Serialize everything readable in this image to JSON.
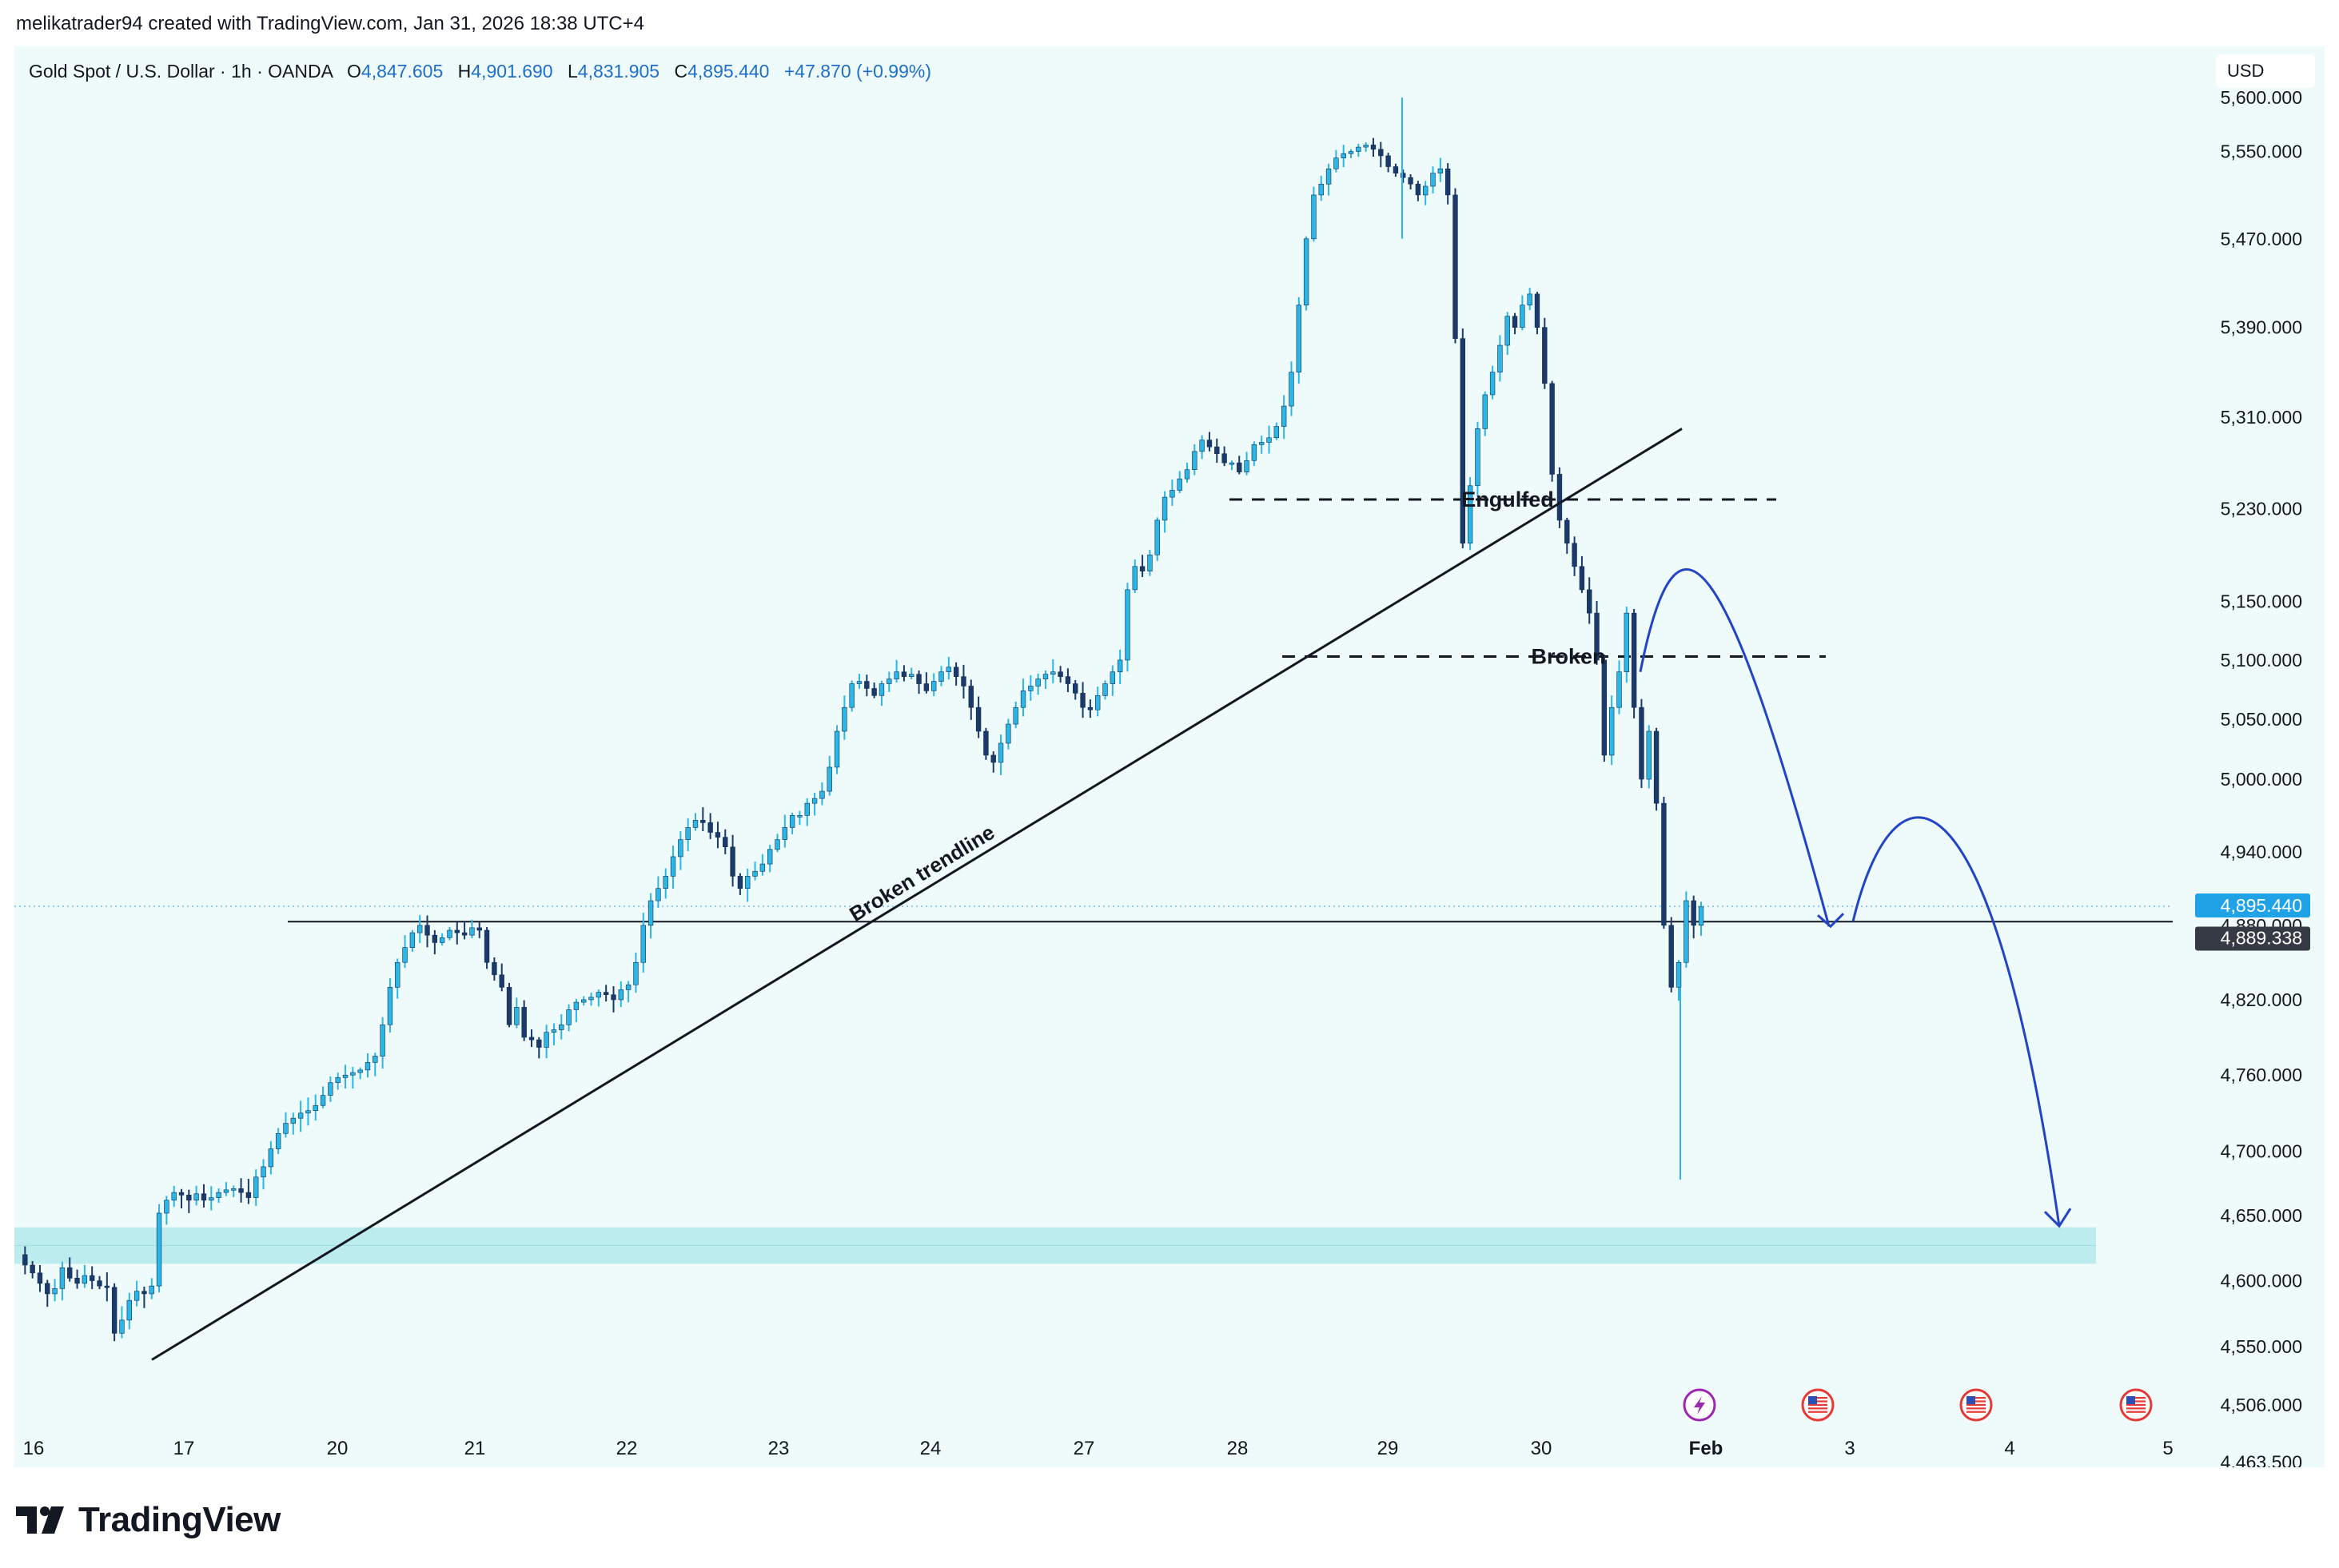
{
  "header": {
    "attribution": "melikatrader94 created with TradingView.com, Jan 31, 2026 18:38 UTC+4"
  },
  "legend": {
    "symbol": "Gold Spot / U.S. Dollar · 1h · OANDA",
    "open_label": "O",
    "open": "4,847.605",
    "high_label": "H",
    "high": "4,901.690",
    "low_label": "L",
    "low": "4,831.905",
    "close_label": "C",
    "close": "4,895.440",
    "change": "+47.870 (+0.99%)"
  },
  "currency": "USD",
  "footer": {
    "brand": "TradingView"
  },
  "colors": {
    "background": "#effafa",
    "candle_up": "#2bb6e8",
    "candle_down": "#1b3a6b",
    "zone": "#b4e9ec",
    "projection": "#2344c4",
    "last_price_tag": "#1fa3e6",
    "crosshair_tag": "#363a45"
  },
  "chart_data": {
    "type": "candlestick",
    "title": "Gold Spot / U.S. Dollar · 1h · OANDA",
    "price_scale": "log",
    "ylim": [
      4440,
      5640
    ],
    "y_ticks": [
      "5,600.000",
      "5,550.000",
      "5,470.000",
      "5,390.000",
      "5,310.000",
      "5,230.000",
      "5,150.000",
      "5,100.000",
      "5,050.000",
      "5,000.000",
      "4,940.000",
      "4,880.000",
      "4,820.000",
      "4,760.000",
      "4,700.000",
      "4,650.000",
      "4,600.000",
      "4,550.000",
      "4,506.000",
      "4,463.500"
    ],
    "x_ticks": [
      "16",
      "17",
      "20",
      "21",
      "22",
      "23",
      "24",
      "27",
      "28",
      "29",
      "30",
      "Feb",
      "3",
      "4",
      "5"
    ],
    "last_price": "4,895.440",
    "crosshair_price": "4,889.338",
    "price_path_hourly": [
      4620,
      4612,
      4606,
      4598,
      4590,
      4594,
      4610,
      4602,
      4598,
      4604,
      4600,
      4596,
      4595,
      4560,
      4570,
      4585,
      4592,
      4590,
      4596,
      4652,
      4662,
      4668,
      4666,
      4662,
      4667,
      4662,
      4664,
      4668,
      4670,
      4671,
      4668,
      4664,
      4680,
      4688,
      4702,
      4714,
      4722,
      4726,
      4730,
      4732,
      4736,
      4744,
      4754,
      4758,
      4760,
      4762,
      4764,
      4770,
      4775,
      4800,
      4830,
      4850,
      4862,
      4874,
      4880,
      4872,
      4866,
      4870,
      4876,
      4874,
      4872,
      4878,
      4876,
      4850,
      4840,
      4830,
      4800,
      4814,
      4790,
      4788,
      4782,
      4794,
      4796,
      4800,
      4812,
      4818,
      4820,
      4822,
      4826,
      4824,
      4820,
      4828,
      4832,
      4850,
      4880,
      4900,
      4910,
      4920,
      4936,
      4950,
      4960,
      4966,
      4964,
      4956,
      4952,
      4944,
      4920,
      4910,
      4920,
      4924,
      4930,
      4942,
      4950,
      4960,
      4970,
      4970,
      4980,
      4984,
      4990,
      5010,
      5040,
      5060,
      5080,
      5082,
      5076,
      5070,
      5080,
      5084,
      5090,
      5086,
      5088,
      5080,
      5074,
      5082,
      5090,
      5094,
      5086,
      5078,
      5060,
      5040,
      5020,
      5014,
      5030,
      5046,
      5060,
      5074,
      5078,
      5084,
      5088,
      5090,
      5086,
      5080,
      5072,
      5060,
      5058,
      5070,
      5080,
      5090,
      5100,
      5160,
      5180,
      5176,
      5190,
      5220,
      5240,
      5246,
      5256,
      5264,
      5280,
      5290,
      5284,
      5278,
      5270,
      5270,
      5262,
      5272,
      5286,
      5288,
      5292,
      5302,
      5320,
      5350,
      5410,
      5470,
      5510,
      5520,
      5534,
      5544,
      5548,
      5550,
      5554,
      5556,
      5552,
      5546,
      5536,
      5530,
      5526,
      5520,
      5510,
      5518,
      5530,
      5534,
      5510,
      5380,
      5200,
      5250,
      5300,
      5330,
      5350,
      5374,
      5400,
      5390,
      5410,
      5420,
      5390,
      5340,
      5260,
      5220,
      5200,
      5180,
      5160,
      5140,
      5100,
      5020,
      5060,
      5090,
      5140,
      5060,
      5000,
      5040,
      4980,
      4880,
      4830,
      4850,
      4900,
      4880,
      4895
    ]
  },
  "annotations": {
    "engulfed_label": "Engulfed",
    "broken_label": "Broken",
    "trendline_label": "Broken trendline",
    "support_level": 4883,
    "engulfed_level": 5238,
    "broken_level": 5103,
    "demand_zone": [
      4613,
      4641
    ]
  },
  "events": [
    {
      "icon": "lightning-event-icon"
    },
    {
      "icon": "us-flag-event-icon"
    },
    {
      "icon": "us-flag-event-icon"
    },
    {
      "icon": "us-flag-event-icon"
    }
  ]
}
